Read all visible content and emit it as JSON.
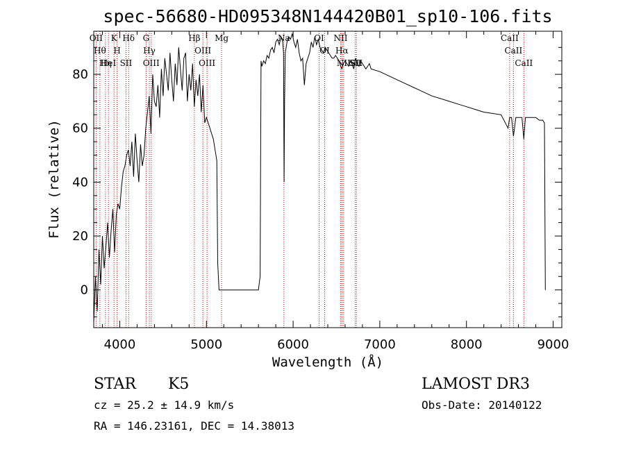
{
  "chart_data": {
    "type": "line",
    "title": "spec-56680-HD095348N144420B01_sp10-106.fits",
    "xlabel": "Wavelength (Å)",
    "ylabel": "Flux (relative)",
    "xlim": [
      3700,
      9100
    ],
    "ylim": [
      -14,
      96
    ],
    "xticks": [
      4000,
      5000,
      6000,
      7000,
      8000,
      9000
    ],
    "yticks": [
      0,
      20,
      40,
      60,
      80
    ],
    "series": [
      {
        "name": "flux",
        "x": [
          3700,
          3720,
          3740,
          3760,
          3780,
          3800,
          3820,
          3840,
          3860,
          3880,
          3900,
          3920,
          3940,
          3960,
          3980,
          4000,
          4020,
          4040,
          4060,
          4080,
          4100,
          4120,
          4140,
          4160,
          4180,
          4200,
          4220,
          4240,
          4260,
          4280,
          4300,
          4320,
          4340,
          4360,
          4380,
          4400,
          4420,
          4440,
          4460,
          4480,
          4500,
          4520,
          4540,
          4560,
          4580,
          4600,
          4620,
          4640,
          4660,
          4680,
          4700,
          4720,
          4740,
          4760,
          4780,
          4800,
          4820,
          4840,
          4860,
          4880,
          4900,
          4920,
          4940,
          4960,
          4980,
          5000,
          5020,
          5040,
          5060,
          5080,
          5100,
          5120,
          5130,
          5145,
          5600,
          5620,
          5630,
          5640,
          5660,
          5680,
          5700,
          5720,
          5740,
          5760,
          5780,
          5800,
          5820,
          5840,
          5860,
          5880,
          5890,
          5896,
          5902,
          5910,
          5930,
          5950,
          5970,
          5990,
          6010,
          6030,
          6050,
          6070,
          6090,
          6110,
          6130,
          6150,
          6170,
          6190,
          6210,
          6230,
          6250,
          6270,
          6290,
          6310,
          6330,
          6350,
          6370,
          6390,
          6410,
          6430,
          6450,
          6470,
          6490,
          6510,
          6530,
          6550,
          6563,
          6580,
          6600,
          6620,
          6640,
          6660,
          6680,
          6700,
          6720,
          6740,
          6760,
          6780,
          6800,
          6820,
          6840,
          6860,
          6880,
          6900,
          7000,
          7100,
          7200,
          7300,
          7400,
          7500,
          7600,
          7700,
          7800,
          7900,
          8000,
          8100,
          8200,
          8300,
          8400,
          8480,
          8498,
          8520,
          8542,
          8570,
          8600,
          8640,
          8662,
          8680,
          8720,
          8760,
          8800,
          8840,
          8880,
          8900,
          8910
        ],
        "values": [
          -12,
          5,
          -8,
          15,
          2,
          20,
          8,
          16,
          25,
          12,
          22,
          30,
          14,
          28,
          32,
          30,
          38,
          44,
          46,
          50,
          52,
          46,
          55,
          42,
          58,
          48,
          40,
          54,
          46,
          50,
          60,
          66,
          72,
          58,
          80,
          70,
          68,
          76,
          64,
          82,
          72,
          86,
          80,
          74,
          88,
          78,
          70,
          84,
          76,
          90,
          82,
          74,
          86,
          88,
          70,
          80,
          74,
          84,
          68,
          78,
          72,
          80,
          66,
          76,
          62,
          64,
          62,
          60,
          58,
          56,
          52,
          48,
          10,
          0,
          0,
          5,
          85,
          83,
          85,
          84,
          87,
          86,
          89,
          90,
          88,
          92,
          93,
          91,
          94,
          92,
          88,
          40,
          70,
          88,
          92,
          94,
          93,
          95,
          92,
          90,
          93,
          88,
          85,
          86,
          76,
          84,
          86,
          88,
          92,
          90,
          94,
          91,
          93,
          90,
          89,
          88,
          90,
          89,
          88,
          87,
          86,
          86,
          87,
          86,
          85,
          83,
          82,
          84,
          85,
          84,
          83,
          85,
          84,
          82,
          86,
          84,
          83,
          85,
          84,
          83,
          82,
          83,
          84,
          82,
          81,
          79.5,
          78,
          76.5,
          75,
          73.5,
          72,
          71,
          70,
          69,
          68,
          67,
          66,
          65.5,
          65,
          60,
          64,
          64,
          57,
          64,
          64,
          64,
          56,
          64,
          64,
          64,
          64,
          63,
          63,
          62,
          0
        ]
      }
    ],
    "line_markers": [
      {
        "wavelength": 3727,
        "label": "OII"
      },
      {
        "wavelength": 3771,
        "label": "Hθ"
      },
      {
        "wavelength": 3835,
        "label": "Hη"
      },
      {
        "wavelength": 3869,
        "label": "HeI"
      },
      {
        "wavelength": 3934,
        "label": "K"
      },
      {
        "wavelength": 3969,
        "label": "H"
      },
      {
        "wavelength": 4072,
        "label": "SII"
      },
      {
        "wavelength": 4102,
        "label": "Hδ"
      },
      {
        "wavelength": 4304,
        "label": "G"
      },
      {
        "wavelength": 4341,
        "label": "Hγ"
      },
      {
        "wavelength": 4363,
        "label": "OIII"
      },
      {
        "wavelength": 4861,
        "label": "Hβ"
      },
      {
        "wavelength": 4959,
        "label": "OIII"
      },
      {
        "wavelength": 5007,
        "label": "OIII"
      },
      {
        "wavelength": 5175,
        "label": "Mg"
      },
      {
        "wavelength": 5894,
        "label": "Na"
      },
      {
        "wavelength": 6300,
        "label": "OI"
      },
      {
        "wavelength": 6364,
        "label": "OI"
      },
      {
        "wavelength": 6548,
        "label": "NII"
      },
      {
        "wavelength": 6563,
        "label": "Hα"
      },
      {
        "wavelength": 6583,
        "label": "NII"
      },
      {
        "wavelength": 6716,
        "label": "SII"
      },
      {
        "wavelength": 6731,
        "label": "SII"
      },
      {
        "wavelength": 8498,
        "label": "CaII"
      },
      {
        "wavelength": 8542,
        "label": "CaII"
      },
      {
        "wavelength": 8662,
        "label": "CaII"
      }
    ]
  },
  "info": {
    "object_class": "STAR",
    "subclass": "K5",
    "survey": "LAMOST DR3",
    "cz": "cz = 25.2 ± 14.9 km/s",
    "obs_date": "Obs-Date: 20140122",
    "coords": "RA = 146.23161, DEC =  14.38013"
  },
  "colors": {
    "spectrum": "#000000",
    "marker_line": "#cc0000",
    "axes": "#000000"
  }
}
